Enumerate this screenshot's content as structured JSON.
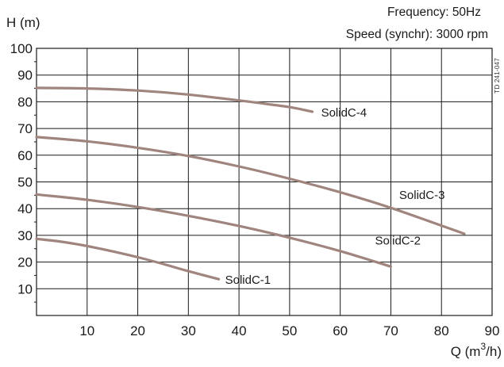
{
  "chart_data": {
    "type": "line",
    "xlabel": "Q (m³/h)",
    "xlabel_base": "Q (m",
    "xlabel_sup": "3",
    "xlabel_tail": "/h)",
    "ylabel": "H (m)",
    "xlim": [
      0,
      90
    ],
    "ylim": [
      0,
      100
    ],
    "x_ticks": [
      10,
      20,
      30,
      40,
      50,
      60,
      70,
      80,
      90
    ],
    "y_ticks": [
      10,
      20,
      30,
      40,
      50,
      60,
      70,
      80,
      90,
      100
    ],
    "grid": true,
    "annotations": {
      "frequency": "Frequency: 50Hz",
      "speed": "Speed (synchr): 3000 rpm",
      "drawing_code": "TD 241-047"
    },
    "curve_color": "#a0857f",
    "series": [
      {
        "name": "SolidC-1",
        "x": [
          0,
          5,
          10,
          15,
          20,
          25,
          30,
          36
        ],
        "y": [
          28.7,
          27.6,
          26.0,
          24.0,
          21.8,
          19.3,
          16.6,
          13.6
        ]
      },
      {
        "name": "SolidC-2",
        "x": [
          0,
          10,
          20,
          30,
          40,
          50,
          60,
          70
        ],
        "y": [
          45.3,
          43.3,
          40.6,
          37.3,
          33.5,
          29.1,
          24.1,
          18.3
        ]
      },
      {
        "name": "SolidC-3",
        "x": [
          0,
          10,
          20,
          30,
          40,
          50,
          60,
          70,
          84.5
        ],
        "y": [
          66.8,
          65.2,
          62.8,
          59.7,
          55.8,
          51.2,
          46.1,
          40.3,
          30.6
        ]
      },
      {
        "name": "SolidC-4",
        "x": [
          0,
          10,
          20,
          30,
          40,
          45,
          50,
          54.5
        ],
        "y": [
          85.2,
          85.0,
          84.2,
          82.7,
          80.5,
          79.3,
          78.0,
          76.3
        ]
      }
    ]
  }
}
